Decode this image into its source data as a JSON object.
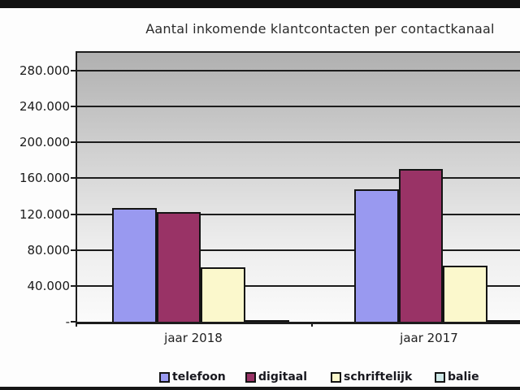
{
  "chart_data": {
    "type": "bar",
    "title": "Aantal inkomende klantcontacten per contactkanaal",
    "categories": [
      "jaar 2018",
      "jaar 2017"
    ],
    "series": [
      {
        "name": "telefoon",
        "color": "#9999f0",
        "values": [
          127000,
          148000
        ]
      },
      {
        "name": "digitaal",
        "color": "#993366",
        "values": [
          122000,
          170000
        ]
      },
      {
        "name": "schriftelijk",
        "color": "#fbf8cc",
        "values": [
          61000,
          63000
        ]
      },
      {
        "name": "balie",
        "color": "#cfe9e8",
        "values": [
          2000,
          2000
        ]
      }
    ],
    "xlabel": "",
    "ylabel": "",
    "ylim": [
      0,
      300000
    ],
    "ytick_interval": 40000,
    "ytick_labels": [
      "-",
      "40.000",
      "80.000",
      "120.000",
      "160.000",
      "200.000",
      "240.000",
      "280.000"
    ],
    "grid": true,
    "legend_position": "bottom",
    "plot_border_color": "#1c1c1c",
    "gridline_color": "#1c1c1c"
  }
}
